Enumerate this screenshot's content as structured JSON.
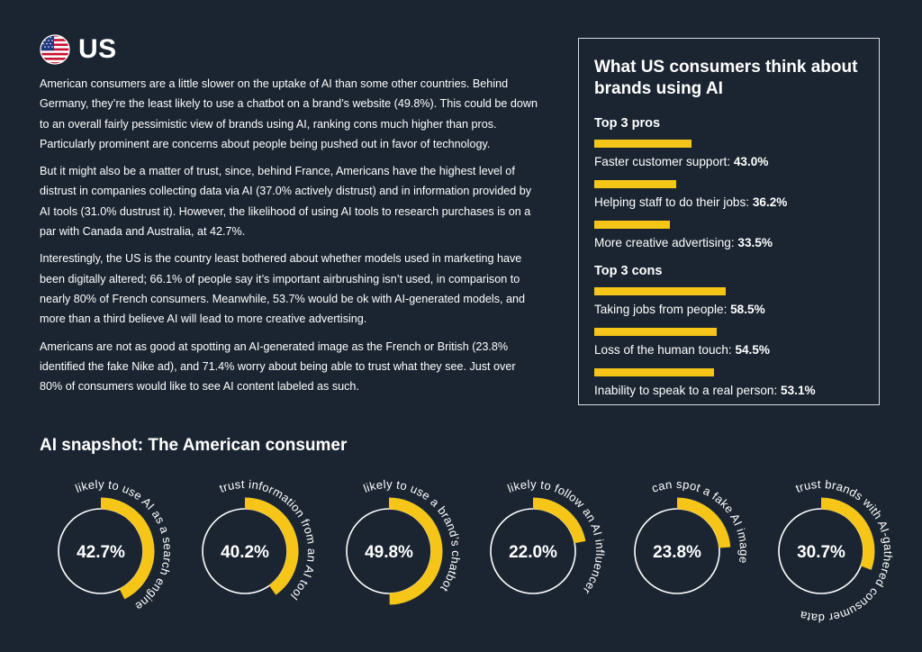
{
  "header": {
    "country": "US",
    "flag_icon": "us-flag-icon"
  },
  "intro": {
    "paragraphs": [
      "American consumers are a little slower on the uptake of AI than some other countries. Behind Germany, they’re the least likely to use a chatbot on a brand’s website (49.8%). This could be down to an overall fairly pessimistic view of brands using AI, ranking cons much higher than pros. Particularly prominent are concerns about people being pushed out in favor of technology.",
      "But it might also be a matter of trust, since, behind France, Americans have the highest level of distrust in companies collecting data via AI (37.0% actively distrust) and in information provided by AI tools (31.0% dustrust it). However, the likelihood of using AI tools to research purchases is on a par with Canada and Australia, at 42.7%.",
      "Interestingly, the US is the country least bothered about whether models used in marketing have been digitally altered; 66.1% of people say it’s important airbrushing isn’t used, in comparison to nearly 80% of French consumers. Meanwhile, 53.7% would be ok with AI-generated models, and more than a third believe AI will lead to more creative advertising.",
      "Americans are not as good at spotting an AI-generated image as the French or British (23.8% identified the fake Nike ad), and 71.4% worry about being able to trust what they see. Just over 80% of consumers would like to see AI content labeled as such."
    ]
  },
  "panel": {
    "title": "What US consumers think about brands using AI",
    "pros_heading": "Top 3 pros",
    "pros": [
      {
        "label": "Faster customer support: ",
        "value_text": "43.0%",
        "value": 43.0
      },
      {
        "label": "Helping staff to do their jobs: ",
        "value_text": "36.2%",
        "value": 36.2
      },
      {
        "label": "More creative advertising: ",
        "value_text": "33.5%",
        "value": 33.5
      }
    ],
    "cons_heading": "Top 3 cons",
    "cons": [
      {
        "label": "Taking jobs from people: ",
        "value_text": "58.5%",
        "value": 58.5
      },
      {
        "label": "Loss of the human touch: ",
        "value_text": "54.5%",
        "value": 54.5
      },
      {
        "label": "Inability to speak to a real person: ",
        "value_text": "53.1%",
        "value": 53.1
      }
    ]
  },
  "snapshot": {
    "title": "AI snapshot: The American consumer",
    "items": [
      {
        "value_text": "42.7%",
        "value": 42.7,
        "label": "likely to use AI as a search engine"
      },
      {
        "value_text": "40.2%",
        "value": 40.2,
        "label": "trust information from an AI tool"
      },
      {
        "value_text": "49.8%",
        "value": 49.8,
        "label": "likely to use a brand’s chatbot"
      },
      {
        "value_text": "22.0%",
        "value": 22.0,
        "label": "likely to follow an AI influencer"
      },
      {
        "value_text": "23.8%",
        "value": 23.8,
        "label": "can spot a fake AI image"
      },
      {
        "value_text": "30.7%",
        "value": 30.7,
        "label": "trust brands with AI-gathered consumer data"
      }
    ]
  },
  "colors": {
    "background": "#1b2531",
    "accent": "#f5c518",
    "text": "#ffffff"
  }
}
